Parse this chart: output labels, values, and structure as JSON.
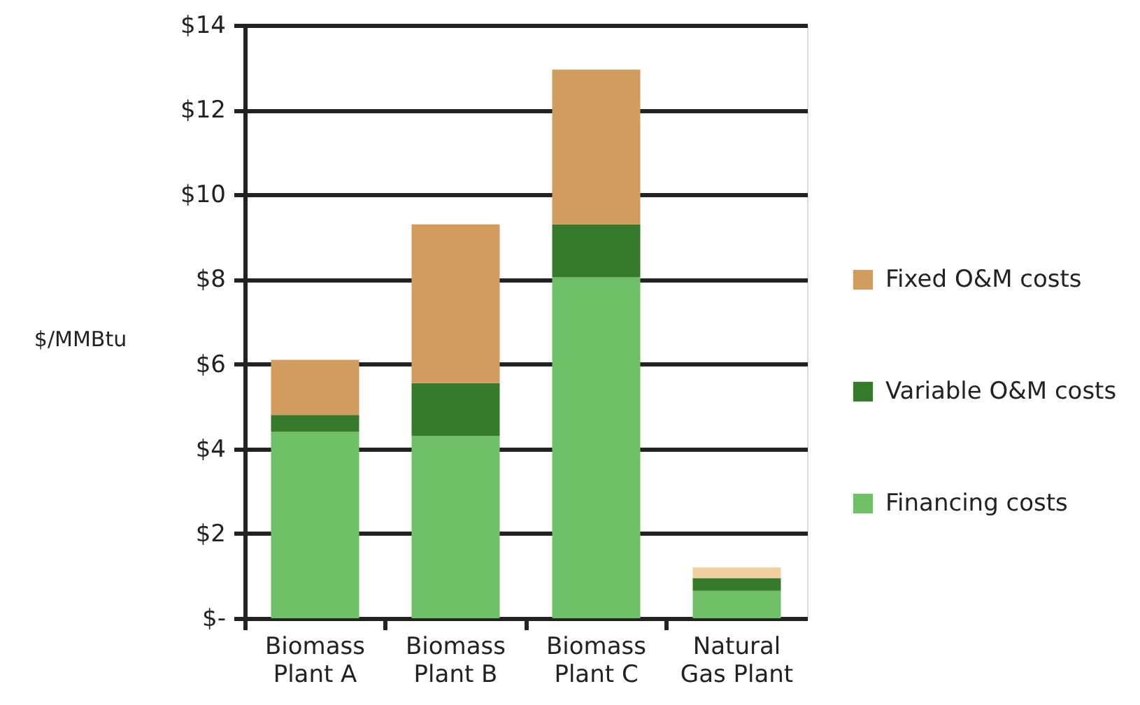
{
  "chart_data": {
    "type": "bar",
    "stacked": true,
    "ylabel": "$/MMBtu",
    "categories": [
      "Biomass Plant A",
      "Biomass Plant B",
      "Biomass Plant C",
      "Natural Gas Plant"
    ],
    "series": [
      {
        "name": "Financing costs",
        "color": "#70c067",
        "values": [
          4.4,
          4.3,
          8.05,
          0.65
        ]
      },
      {
        "name": "Variable O&M costs",
        "color": "#367a2b",
        "values": [
          0.4,
          1.25,
          1.25,
          0.3
        ]
      },
      {
        "name": "Fixed O&M costs",
        "color": "#d39c5f",
        "colors": [
          "#d39c5f",
          "#d39c5f",
          "#d39c5f",
          "#f0cfa0"
        ],
        "values": [
          1.3,
          3.75,
          3.65,
          0.25
        ]
      }
    ],
    "ylim": [
      0,
      14
    ],
    "yticks": [
      {
        "value": 0,
        "label": "$-"
      },
      {
        "value": 2,
        "label": "$2"
      },
      {
        "value": 4,
        "label": "$4"
      },
      {
        "value": 6,
        "label": "$6"
      },
      {
        "value": 8,
        "label": "$8"
      },
      {
        "value": 10,
        "label": "$10"
      },
      {
        "value": 12,
        "label": "$12"
      },
      {
        "value": 14,
        "label": "$14"
      }
    ],
    "grid": "y",
    "legend": "right"
  }
}
